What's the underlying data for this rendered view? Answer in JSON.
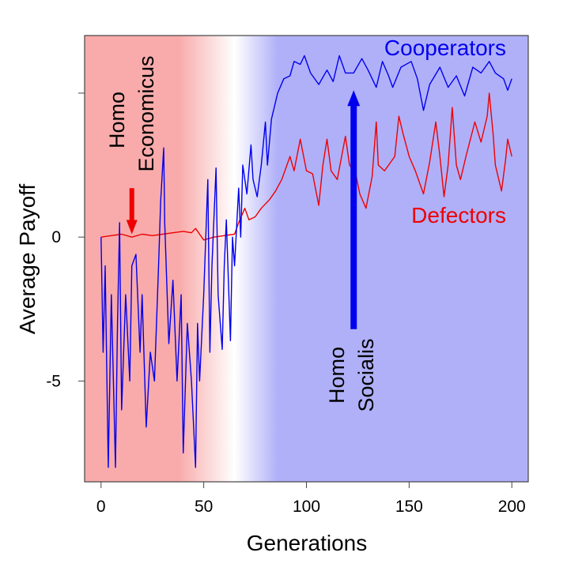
{
  "chart_data": {
    "type": "line",
    "title": "",
    "xlabel": "Generations",
    "ylabel": "Average Payoff",
    "xlim": [
      -8,
      208
    ],
    "ylim": [
      -8.5,
      7.0
    ],
    "x_ticks": [
      0,
      50,
      100,
      150,
      200
    ],
    "x_tick_labels": [
      "0",
      "50",
      "100",
      "150",
      "200"
    ],
    "y_ticks": [
      -5,
      0,
      5
    ],
    "y_tick_labels": [
      "-5",
      "0",
      ""
    ],
    "grid": false,
    "background": {
      "left_color": "#f9abab",
      "middle_color": "#ffffff",
      "right_color": "#b0b0f9"
    },
    "series": [
      {
        "name": "Cooperators",
        "color": "#0000ee",
        "points": [
          [
            0,
            0
          ],
          [
            1,
            -4
          ],
          [
            2,
            -1
          ],
          [
            3.5,
            -8
          ],
          [
            5,
            -2
          ],
          [
            7,
            -8
          ],
          [
            8,
            -3
          ],
          [
            9,
            0.5
          ],
          [
            10,
            -6
          ],
          [
            12,
            -2
          ],
          [
            14,
            -5
          ],
          [
            15,
            -1
          ],
          [
            17,
            -0.6
          ],
          [
            19,
            -4
          ],
          [
            20,
            -2
          ],
          [
            22,
            -6.6
          ],
          [
            24,
            -4
          ],
          [
            26,
            -5
          ],
          [
            28,
            -1
          ],
          [
            29,
            1.2
          ],
          [
            30.5,
            3.1
          ],
          [
            31,
            0.5
          ],
          [
            33,
            -3.7
          ],
          [
            35,
            -1.5
          ],
          [
            37,
            -5
          ],
          [
            39,
            -2
          ],
          [
            40,
            -7.5
          ],
          [
            42,
            -3
          ],
          [
            44,
            -5
          ],
          [
            46,
            -8
          ],
          [
            47,
            -3
          ],
          [
            48,
            -5
          ],
          [
            50,
            -2
          ],
          [
            52,
            2
          ],
          [
            53,
            -4
          ],
          [
            54,
            -1
          ],
          [
            56,
            2.4
          ],
          [
            57,
            -2
          ],
          [
            59,
            -3.9
          ],
          [
            60,
            -1
          ],
          [
            61,
            0.6
          ],
          [
            63,
            -3.6
          ],
          [
            64,
            0
          ],
          [
            65,
            -1
          ],
          [
            67,
            1.7
          ],
          [
            68,
            0
          ],
          [
            69,
            2.5
          ],
          [
            71,
            1.5
          ],
          [
            73,
            3.2
          ],
          [
            74,
            2
          ],
          [
            76,
            1.4
          ],
          [
            78,
            2.5
          ],
          [
            80,
            4
          ],
          [
            81,
            2.5
          ],
          [
            83,
            4.1
          ],
          [
            86,
            5
          ],
          [
            89,
            5.5
          ],
          [
            92,
            5.6
          ],
          [
            94,
            6.1
          ],
          [
            97,
            6
          ],
          [
            99,
            6.3
          ],
          [
            102,
            5.7
          ],
          [
            106,
            5.3
          ],
          [
            110,
            5.8
          ],
          [
            113,
            5.4
          ],
          [
            116,
            6.3
          ],
          [
            119,
            5.7
          ],
          [
            123,
            5.7
          ],
          [
            127,
            6.2
          ],
          [
            130,
            5.8
          ],
          [
            134,
            5.2
          ],
          [
            137,
            6.1
          ],
          [
            140,
            5.6
          ],
          [
            142,
            5.2
          ],
          [
            146,
            5.9
          ],
          [
            151,
            6.1
          ],
          [
            154,
            5.5
          ],
          [
            157,
            4.4
          ],
          [
            160,
            5.3
          ],
          [
            165,
            5.9
          ],
          [
            169,
            5.2
          ],
          [
            173,
            5.6
          ],
          [
            177,
            4.9
          ],
          [
            181,
            5.9
          ],
          [
            185,
            5.7
          ],
          [
            189,
            6.1
          ],
          [
            192,
            5.7
          ],
          [
            196,
            5.5
          ],
          [
            198,
            5.1
          ],
          [
            200,
            5.5
          ]
        ]
      },
      {
        "name": "Defectors",
        "color": "#ee0000",
        "points": [
          [
            0,
            0
          ],
          [
            5,
            0.05
          ],
          [
            10,
            0.1
          ],
          [
            15,
            0.0
          ],
          [
            20,
            0.1
          ],
          [
            25,
            0.05
          ],
          [
            30,
            0.1
          ],
          [
            35,
            0.15
          ],
          [
            40,
            0.2
          ],
          [
            44,
            0.15
          ],
          [
            46,
            0.3
          ],
          [
            48,
            0.1
          ],
          [
            50,
            -0.1
          ],
          [
            55,
            0.0
          ],
          [
            60,
            0.05
          ],
          [
            65,
            0.1
          ],
          [
            67,
            0.5
          ],
          [
            70,
            1.0
          ],
          [
            72,
            0.6
          ],
          [
            75,
            0.7
          ],
          [
            78,
            1.0
          ],
          [
            82,
            1.3
          ],
          [
            85,
            1.6
          ],
          [
            88,
            2.0
          ],
          [
            92,
            2.8
          ],
          [
            94,
            2.3
          ],
          [
            97,
            3.4
          ],
          [
            100,
            2.3
          ],
          [
            103,
            2.2
          ],
          [
            106,
            1.1
          ],
          [
            108,
            2.5
          ],
          [
            110,
            3.4
          ],
          [
            112,
            2.3
          ],
          [
            115,
            2.0
          ],
          [
            119,
            3.5
          ],
          [
            121,
            2.5
          ],
          [
            124,
            2.2
          ],
          [
            126,
            1.5
          ],
          [
            129,
            1.0
          ],
          [
            132,
            2.1
          ],
          [
            134,
            4.0
          ],
          [
            135,
            2.5
          ],
          [
            138,
            2.3
          ],
          [
            140,
            2.5
          ],
          [
            143,
            2.8
          ],
          [
            145,
            4.2
          ],
          [
            147,
            3.6
          ],
          [
            150,
            2.8
          ],
          [
            153,
            2.3
          ],
          [
            157,
            1.5
          ],
          [
            160,
            2.6
          ],
          [
            163,
            4.0
          ],
          [
            165,
            2.8
          ],
          [
            167,
            1.4
          ],
          [
            169,
            2.5
          ],
          [
            171,
            4.5
          ],
          [
            173,
            2.5
          ],
          [
            175,
            2.0
          ],
          [
            178,
            2.9
          ],
          [
            182,
            4.0
          ],
          [
            185,
            3.3
          ],
          [
            188,
            4.2
          ],
          [
            189,
            5.0
          ],
          [
            191,
            3.5
          ],
          [
            192,
            2.5
          ],
          [
            195,
            1.6
          ],
          [
            197,
            2.7
          ],
          [
            198,
            3.4
          ],
          [
            200,
            2.8
          ]
        ]
      }
    ],
    "annotations": [
      {
        "text_lines": [
          "Homo",
          "Economicus"
        ],
        "arrow_color": "#ee0000",
        "arrow_x": 15,
        "arrow_from_y": 1.7,
        "arrow_to_y": 0.1
      },
      {
        "text_lines": [
          "Homo",
          "Socialis"
        ],
        "arrow_color": "#0000ee",
        "arrow_x": 123,
        "arrow_from_y": -3.2,
        "arrow_to_y": 5.1
      }
    ]
  }
}
